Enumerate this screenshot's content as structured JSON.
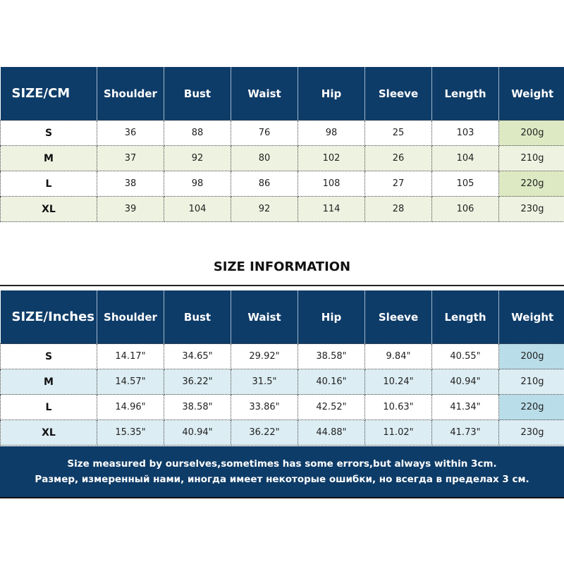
{
  "title": "SIZE INFORMATION",
  "columns": [
    "Shoulder",
    "Bust",
    "Waist",
    "Hip",
    "Sleeve",
    "Length",
    "Weight"
  ],
  "cm_table": {
    "corner": "SIZE/CM",
    "rows": [
      [
        "S",
        "36",
        "88",
        "76",
        "98",
        "25",
        "103",
        "200g"
      ],
      [
        "M",
        "37",
        "92",
        "80",
        "102",
        "26",
        "104",
        "210g"
      ],
      [
        "L",
        "38",
        "98",
        "86",
        "108",
        "27",
        "105",
        "220g"
      ],
      [
        "XL",
        "39",
        "104",
        "92",
        "114",
        "28",
        "106",
        "230g"
      ]
    ]
  },
  "inch_table": {
    "corner": "SIZE/Inches",
    "rows": [
      [
        "S",
        "14.17\"",
        "34.65\"",
        "29.92\"",
        "38.58\"",
        "9.84\"",
        "40.55\"",
        "200g"
      ],
      [
        "M",
        "14.57\"",
        "36.22\"",
        "31.5\"",
        "40.16\"",
        "10.24\"",
        "40.94\"",
        "210g"
      ],
      [
        "L",
        "14.96\"",
        "38.58\"",
        "33.86\"",
        "42.52\"",
        "10.63\"",
        "41.34\"",
        "220g"
      ],
      [
        "XL",
        "15.35\"",
        "40.94\"",
        "36.22\"",
        "44.88\"",
        "11.02\"",
        "41.73\"",
        "230g"
      ]
    ]
  },
  "footer": {
    "line_en": "Size measured by ourselves,sometimes has some errors,but always within 3cm.",
    "line_ru": "Размер, измеренный нами, иногда имеет некоторые ошибки, но всегда в пределах 3 см."
  },
  "colors": {
    "header": "#0e3c68",
    "cm_alt": "#eef2e1",
    "cm_weight": "#dde9c3",
    "inch_alt": "#dcedf3",
    "inch_weight": "#b9dde9"
  }
}
